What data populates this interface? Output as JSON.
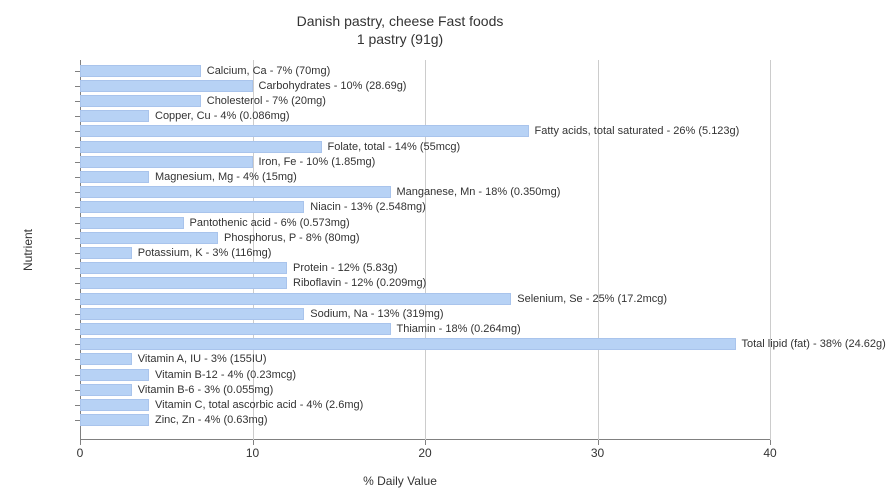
{
  "title_line1": "Danish pastry, cheese Fast foods",
  "title_line2": "1 pastry (91g)",
  "x_axis_label": "% Daily Value",
  "y_axis_label": "Nutrient",
  "xlim": 40,
  "x_ticks": [
    0,
    10,
    20,
    30,
    40
  ],
  "bar_color": "#b7d2f5",
  "bar_border": "#a9c4ec",
  "grid_color": "#cccccc",
  "bars": [
    {
      "label": "Calcium, Ca - 7% (70mg)",
      "value": 7
    },
    {
      "label": "Carbohydrates - 10% (28.69g)",
      "value": 10
    },
    {
      "label": "Cholesterol - 7% (20mg)",
      "value": 7
    },
    {
      "label": "Copper, Cu - 4% (0.086mg)",
      "value": 4
    },
    {
      "label": "Fatty acids, total saturated - 26% (5.123g)",
      "value": 26
    },
    {
      "label": "Folate, total - 14% (55mcg)",
      "value": 14
    },
    {
      "label": "Iron, Fe - 10% (1.85mg)",
      "value": 10
    },
    {
      "label": "Magnesium, Mg - 4% (15mg)",
      "value": 4
    },
    {
      "label": "Manganese, Mn - 18% (0.350mg)",
      "value": 18
    },
    {
      "label": "Niacin - 13% (2.548mg)",
      "value": 13
    },
    {
      "label": "Pantothenic acid - 6% (0.573mg)",
      "value": 6
    },
    {
      "label": "Phosphorus, P - 8% (80mg)",
      "value": 8
    },
    {
      "label": "Potassium, K - 3% (116mg)",
      "value": 3
    },
    {
      "label": "Protein - 12% (5.83g)",
      "value": 12
    },
    {
      "label": "Riboflavin - 12% (0.209mg)",
      "value": 12
    },
    {
      "label": "Selenium, Se - 25% (17.2mcg)",
      "value": 25
    },
    {
      "label": "Sodium, Na - 13% (319mg)",
      "value": 13
    },
    {
      "label": "Thiamin - 18% (0.264mg)",
      "value": 18
    },
    {
      "label": "Total lipid (fat) - 38% (24.62g)",
      "value": 38
    },
    {
      "label": "Vitamin A, IU - 3% (155IU)",
      "value": 3
    },
    {
      "label": "Vitamin B-12 - 4% (0.23mcg)",
      "value": 4
    },
    {
      "label": "Vitamin B-6 - 3% (0.055mg)",
      "value": 3
    },
    {
      "label": "Vitamin C, total ascorbic acid - 4% (2.6mg)",
      "value": 4
    },
    {
      "label": "Zinc, Zn - 4% (0.63mg)",
      "value": 4
    }
  ],
  "label_fontsize": 11,
  "tick_fontsize": 12
}
